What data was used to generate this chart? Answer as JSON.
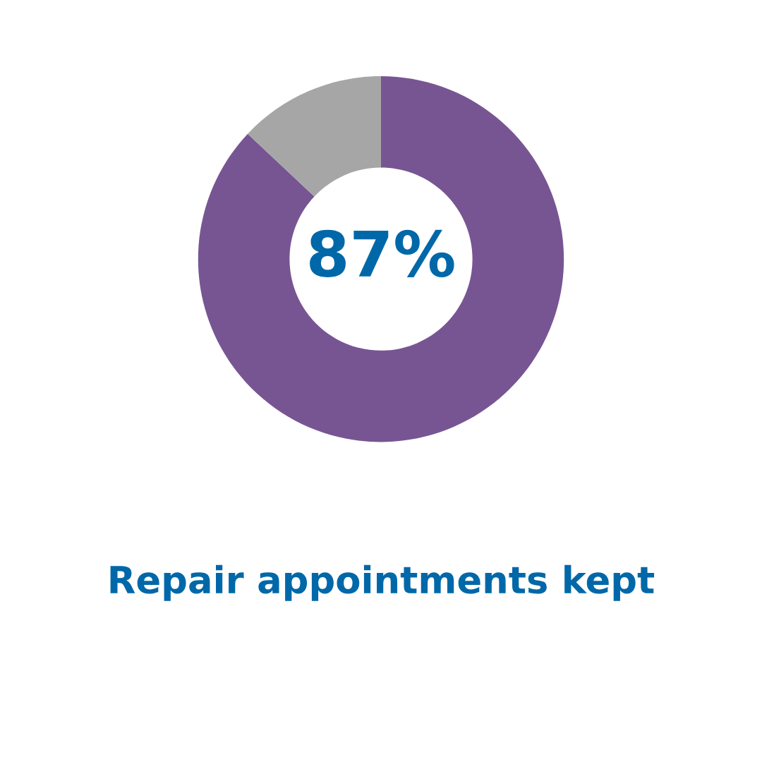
{
  "chart_data": {
    "type": "donut",
    "title": "Repair appointments kept",
    "categories": [
      null,
      null
    ],
    "values": [
      87,
      13
    ],
    "colors": [
      "#775592",
      "#a6a6a6"
    ],
    "value_labels": [
      "87%",
      null
    ],
    "legend": false
  }
}
